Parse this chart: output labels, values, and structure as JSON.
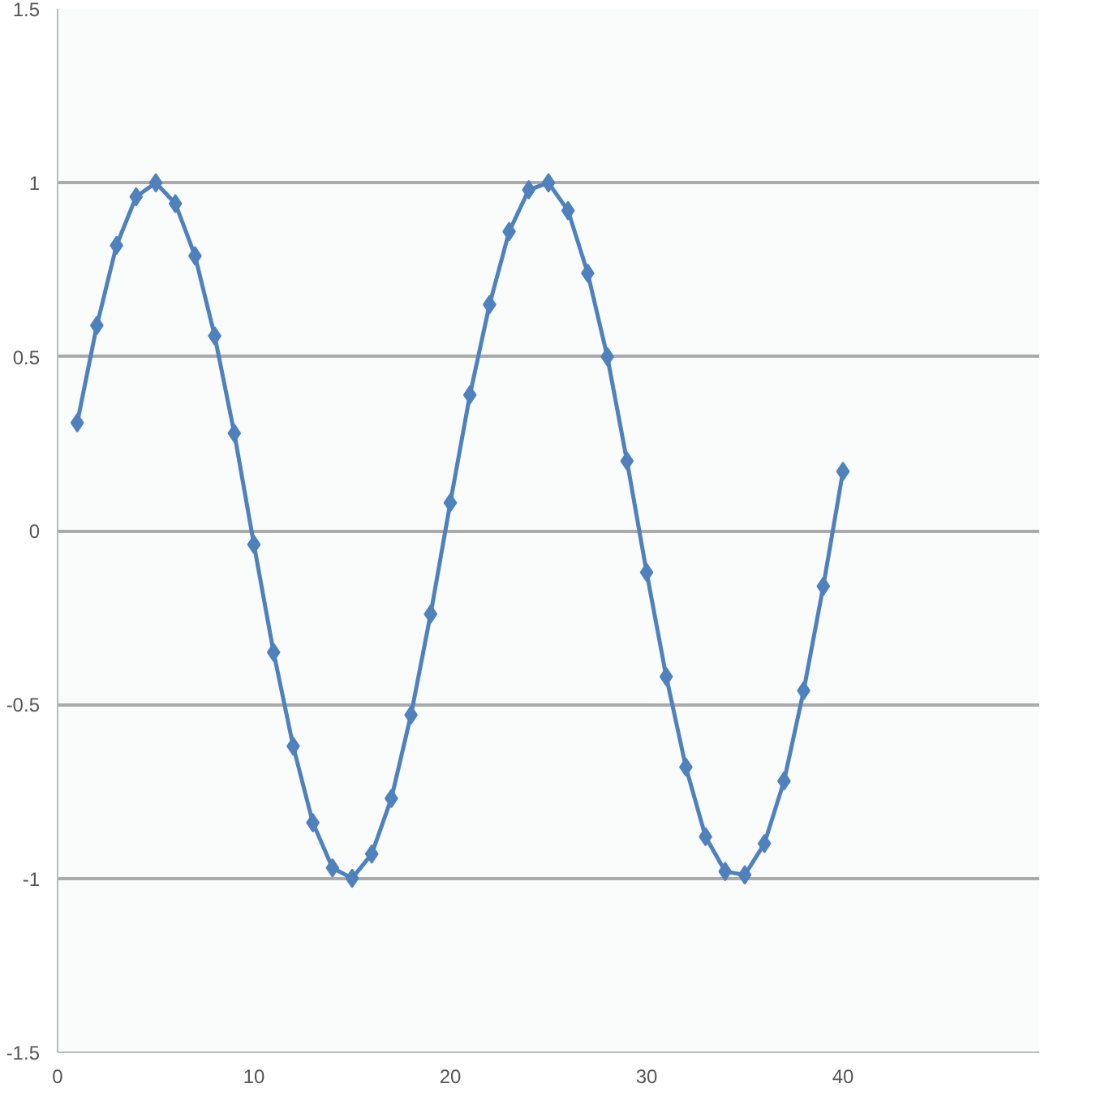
{
  "chart_data": {
    "type": "line",
    "x": [
      1,
      2,
      3,
      4,
      5,
      6,
      7,
      8,
      9,
      10,
      11,
      12,
      13,
      14,
      15,
      16,
      17,
      18,
      19,
      20,
      21,
      22,
      23,
      24,
      25,
      26,
      27,
      28,
      29,
      30,
      31,
      32,
      33,
      34,
      35,
      36,
      37,
      38,
      39,
      40
    ],
    "series": [
      {
        "color": "#4f81bd",
        "values": [
          0.31,
          0.59,
          0.82,
          0.96,
          1.0,
          0.94,
          0.79,
          0.56,
          0.28,
          -0.04,
          -0.35,
          -0.62,
          -0.84,
          -0.97,
          -1.0,
          -0.93,
          -0.77,
          -0.53,
          -0.24,
          0.08,
          0.39,
          0.65,
          0.86,
          0.98,
          1.0,
          0.92,
          0.74,
          0.5,
          0.2,
          -0.12,
          -0.42,
          -0.68,
          -0.88,
          -0.98,
          -0.99,
          -0.9,
          -0.72,
          -0.46,
          -0.16,
          0.17
        ]
      }
    ],
    "xlim": [
      0,
      50
    ],
    "xticks": [
      0,
      10,
      20,
      30,
      40
    ],
    "ylim": [
      -1.5,
      1.5
    ],
    "yticks": [
      -1.5,
      -1,
      -0.5,
      0,
      0.5,
      1,
      1.5
    ],
    "grid": "y",
    "marker": "diamond",
    "line_style": "solid"
  }
}
